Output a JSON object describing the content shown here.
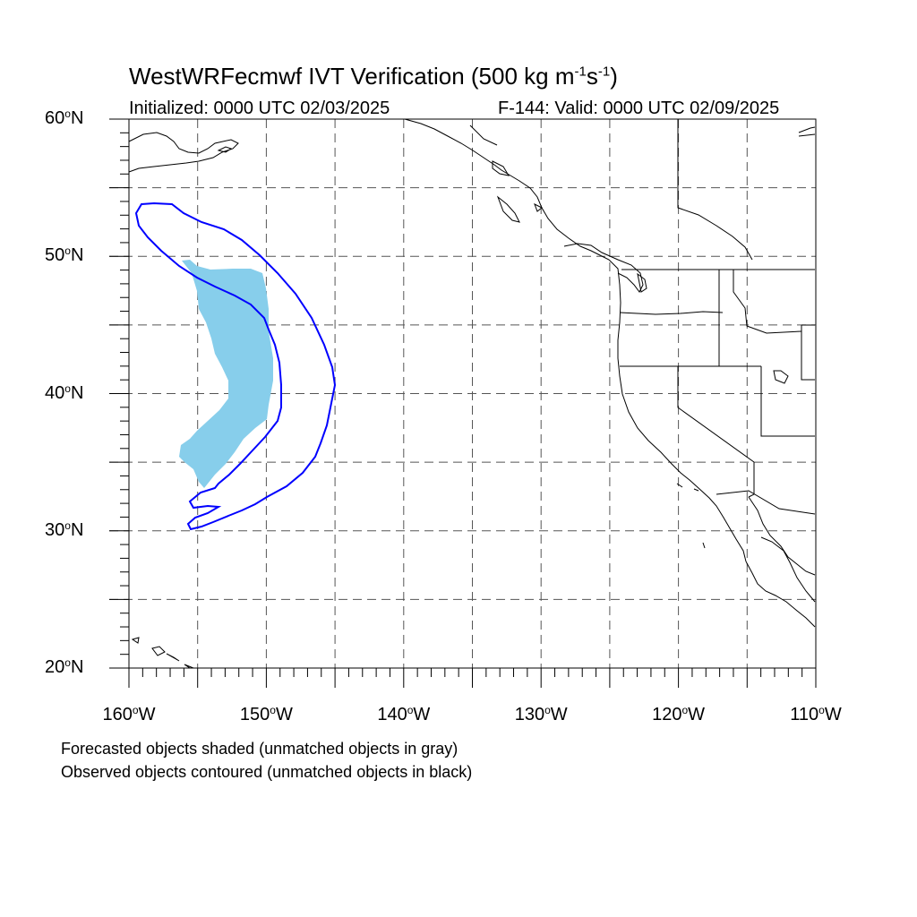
{
  "header": {
    "title_main": "WestWRFecmwf IVT Verification (500 kg m",
    "title_exp1": "-1",
    "title_mid": "s",
    "title_exp2": "-1",
    "title_end": ")",
    "initialized": "Initialized: 0000 UTC 02/03/2025",
    "valid": "F-144: Valid: 0000 UTC 02/09/2025"
  },
  "axes": {
    "lat_labels": [
      {
        "num": "60",
        "hemi": "N",
        "lat": 60
      },
      {
        "num": "50",
        "hemi": "N",
        "lat": 50
      },
      {
        "num": "40",
        "hemi": "N",
        "lat": 40
      },
      {
        "num": "30",
        "hemi": "N",
        "lat": 30
      },
      {
        "num": "20",
        "hemi": "N",
        "lat": 20
      }
    ],
    "lon_labels": [
      {
        "num": "160",
        "hemi": "W",
        "lon": -160
      },
      {
        "num": "150",
        "hemi": "W",
        "lon": -150
      },
      {
        "num": "140",
        "hemi": "W",
        "lon": -140
      },
      {
        "num": "130",
        "hemi": "W",
        "lon": -130
      },
      {
        "num": "120",
        "hemi": "W",
        "lon": -120
      },
      {
        "num": "110",
        "hemi": "W",
        "lon": -110
      }
    ],
    "lon_range": [
      -160,
      -110
    ],
    "lat_range": [
      20,
      60
    ],
    "grid_interval_deg": 5
  },
  "legend": {
    "line1": "Forecasted objects shaded (unmatched objects in gray)",
    "line2": "Observed objects contoured (unmatched objects in black)"
  },
  "colors": {
    "forecast_fill": "#87ceeb",
    "observed_contour": "#0000ff",
    "coastline": "#000000",
    "grid": "#555555"
  }
}
